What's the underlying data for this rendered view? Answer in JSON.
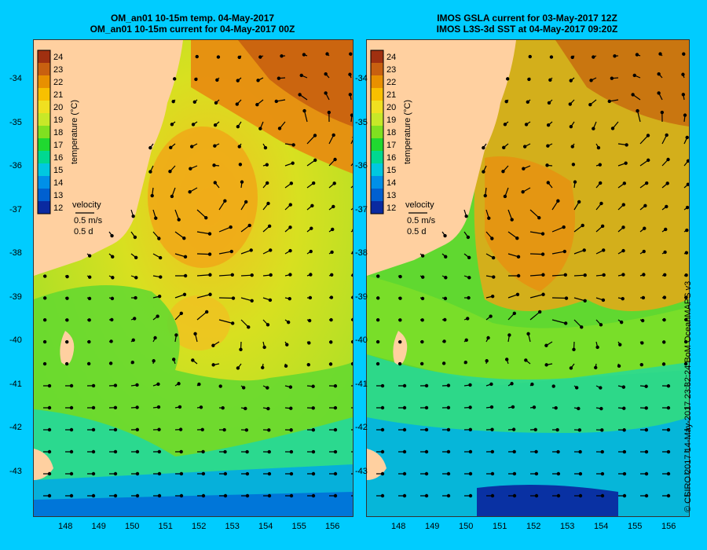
{
  "left_panel": {
    "title_line1": "OM_an01 10-15m temp. 04-May-2017",
    "title_line2": "OM_an01 10-15m current for 04-May-2017 00Z"
  },
  "right_panel": {
    "title_line1": "IMOS GSLA current for 03-May-2017 12Z",
    "title_line2": "IMOS L3S-3d SST at 04-May-2017 09:20Z"
  },
  "colorbar": {
    "ticks": [
      "24",
      "23",
      "22",
      "21",
      "20",
      "19",
      "18",
      "17",
      "16",
      "15",
      "14",
      "13",
      "12"
    ],
    "label": "temperature (°C)"
  },
  "velocity_key": {
    "title": "velocity",
    "speed": "0.5 m/s",
    "duration": "0.5 d"
  },
  "y_ticks": [
    "-34",
    "-35",
    "-36",
    "-37",
    "-38",
    "-39",
    "-40",
    "-41",
    "-42",
    "-43"
  ],
  "x_ticks": [
    "148",
    "149",
    "150",
    "151",
    "152",
    "153",
    "154",
    "155",
    "156"
  ],
  "credit": "© CSIRO 2017   14-May-2017 23:32:24 BoM OceanMAPS v3",
  "colors": {
    "background": "#00ccff",
    "land": "#ffd0a0",
    "scale": [
      "#0a0a7a",
      "#0a2aa0",
      "#0060d0",
      "#0090e8",
      "#00c8e0",
      "#00d890",
      "#20d830",
      "#80e020",
      "#c8e828",
      "#f0e020",
      "#f8c000",
      "#e89000",
      "#c86010",
      "#a03010"
    ]
  }
}
